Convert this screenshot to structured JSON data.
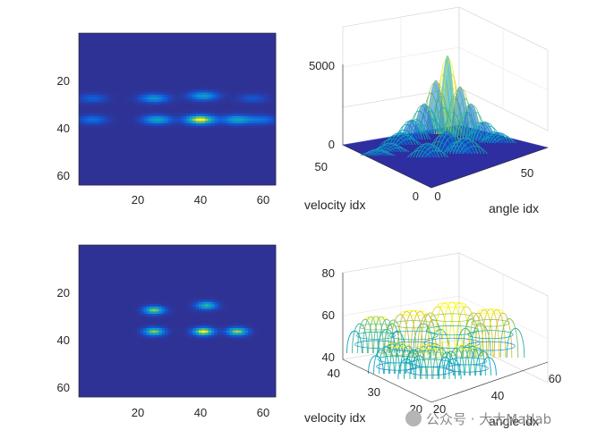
{
  "chart_data": [
    {
      "type": "heatmap",
      "title": "",
      "xlim": [
        1,
        64
      ],
      "ylim": [
        1,
        64
      ],
      "xticks": [
        "20",
        "40",
        "60"
      ],
      "yticks": [
        "20",
        "40",
        "60"
      ],
      "colormap": "parula",
      "blobs": [
        {
          "x": 25,
          "y": 28,
          "peak": 0.45
        },
        {
          "x": 41,
          "y": 27,
          "peak": 0.5
        },
        {
          "x": 5,
          "y": 28,
          "peak": 0.22
        },
        {
          "x": 57,
          "y": 28,
          "peak": 0.18
        },
        {
          "x": 26,
          "y": 37,
          "peak": 0.55
        },
        {
          "x": 40,
          "y": 37,
          "peak": 1.0
        },
        {
          "x": 52,
          "y": 37,
          "peak": 0.55
        },
        {
          "x": 5,
          "y": 37,
          "peak": 0.3
        },
        {
          "x": 60,
          "y": 37,
          "peak": 0.3
        }
      ]
    },
    {
      "type": "surface",
      "xlabel": "velocity idx",
      "ylabel": "angle idx",
      "zlim": [
        0,
        5000
      ],
      "zticks": [
        "0",
        "5000"
      ],
      "xticks": [
        "0",
        "50"
      ],
      "yticks": [
        "0",
        "50"
      ],
      "peak_value": 5000
    },
    {
      "type": "heatmap",
      "title": "",
      "xlim": [
        1,
        64
      ],
      "ylim": [
        1,
        64
      ],
      "xticks": [
        "20",
        "40",
        "60"
      ],
      "yticks": [
        "20",
        "40",
        "60"
      ],
      "colormap": "parula",
      "blobs": [
        {
          "x": 25,
          "y": 28,
          "peak": 0.8
        },
        {
          "x": 42,
          "y": 26,
          "peak": 0.65
        },
        {
          "x": 25,
          "y": 37,
          "peak": 0.8
        },
        {
          "x": 41,
          "y": 37,
          "peak": 1.0
        },
        {
          "x": 52,
          "y": 37,
          "peak": 0.85
        }
      ]
    },
    {
      "type": "surface",
      "xlabel": "velocity idx",
      "ylabel": "angle idx",
      "zlim": [
        40,
        80
      ],
      "zticks": [
        "40",
        "60",
        "80"
      ],
      "xticks": [
        "20",
        "30",
        "40"
      ],
      "yticks": [
        "20",
        "40",
        "60"
      ]
    }
  ],
  "watermark": "公众号 · 大大Matlab",
  "colors": {
    "background": "#3e2eaa",
    "low": "#352a87",
    "mid": "#0f9bd7",
    "high": "#f9fb0e",
    "floor": "#2e2ea0"
  }
}
